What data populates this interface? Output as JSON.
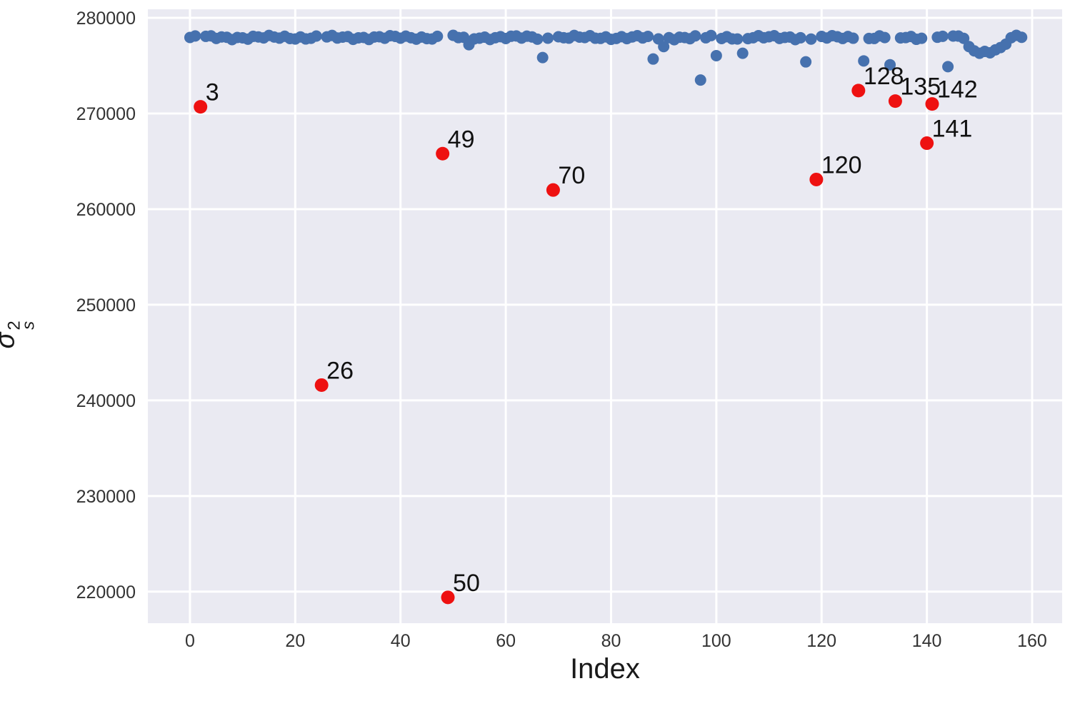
{
  "figure": {
    "kind": "scatter-plot",
    "background_color": "#ffffff"
  },
  "chart_data": {
    "type": "scatter",
    "title": "",
    "xlabel": "Index",
    "ylabel": "sigma-hat squared, subscript s",
    "ylabel_base": "σ̂",
    "ylabel_sup": "2",
    "ylabel_sub": "s",
    "xlim": [
      -8.0,
      165.7
    ],
    "ylim": [
      216700,
      280900
    ],
    "x_ticks": [
      "0",
      "20",
      "40",
      "60",
      "80",
      "100",
      "120",
      "140",
      "160"
    ],
    "x_tick_values": [
      0,
      20,
      40,
      60,
      80,
      100,
      120,
      140,
      160
    ],
    "y_ticks": [
      "220000",
      "230000",
      "240000",
      "250000",
      "260000",
      "270000",
      "280000"
    ],
    "y_tick_values": [
      220000,
      230000,
      240000,
      250000,
      260000,
      270000,
      280000
    ],
    "grid": true,
    "legend": "none",
    "panel_color": "#eaeaf2",
    "grid_color": "#ffffff",
    "tick_label_color": "#333333",
    "point_label_color": "#111111",
    "series": [
      {
        "name": "main-estimates",
        "marker_color": "#4671ae",
        "marker_radius_px": 8,
        "band": {
          "x_start": 0,
          "x_end": 158,
          "y_center": 277950,
          "y_jitter": 230,
          "excluded_x": [
            2,
            25,
            48,
            49,
            69,
            119,
            127,
            134,
            140,
            141
          ]
        },
        "low_points": [
          {
            "x": 53,
            "y": 277200
          },
          {
            "x": 67,
            "y": 275850
          },
          {
            "x": 88,
            "y": 275700
          },
          {
            "x": 90,
            "y": 277000
          },
          {
            "x": 97,
            "y": 273500
          },
          {
            "x": 100,
            "y": 276050
          },
          {
            "x": 105,
            "y": 276300
          },
          {
            "x": 117,
            "y": 275400
          },
          {
            "x": 128,
            "y": 275500
          },
          {
            "x": 133,
            "y": 275100
          },
          {
            "x": 144,
            "y": 274900
          },
          {
            "x": 148,
            "y": 277000
          },
          {
            "x": 149,
            "y": 276550
          },
          {
            "x": 150,
            "y": 276300
          },
          {
            "x": 151,
            "y": 276500
          },
          {
            "x": 152,
            "y": 276350
          },
          {
            "x": 153,
            "y": 276650
          },
          {
            "x": 154,
            "y": 276900
          },
          {
            "x": 155,
            "y": 277250
          }
        ]
      },
      {
        "name": "flagged-outliers",
        "marker_color": "#ee1111",
        "marker_radius_px": 9.5,
        "labeled": true,
        "points": [
          {
            "label": "3",
            "x": 2,
            "y": 270700
          },
          {
            "label": "26",
            "x": 25,
            "y": 241600
          },
          {
            "label": "49",
            "x": 48,
            "y": 265800
          },
          {
            "label": "50",
            "x": 49,
            "y": 219400
          },
          {
            "label": "70",
            "x": 69,
            "y": 262000
          },
          {
            "label": "120",
            "x": 119,
            "y": 263100
          },
          {
            "label": "128",
            "x": 127,
            "y": 272400
          },
          {
            "label": "135",
            "x": 134,
            "y": 271300
          },
          {
            "label": "141",
            "x": 140,
            "y": 266900
          },
          {
            "label": "142",
            "x": 141,
            "y": 271000
          }
        ]
      }
    ]
  }
}
